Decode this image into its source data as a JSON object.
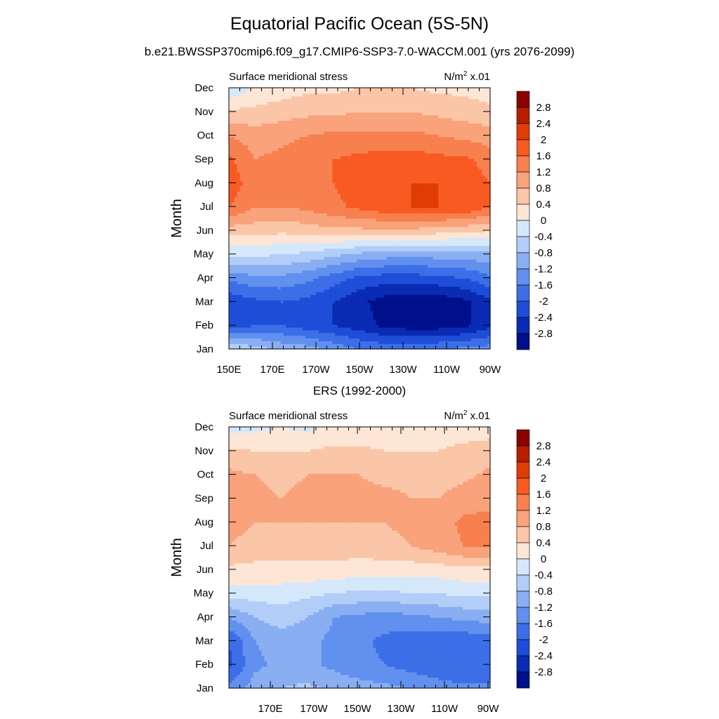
{
  "title": "Equatorial Pacific Ocean (5S-5N)",
  "subtitle": "b.e21.BWSSP370cmip6.f09_g17.CMIP6-SSP3-7.0-WACCM.001 (yrs 2076-2099)",
  "panel2_title": "ERS (1992-2000)",
  "colorbar": {
    "levels": [
      "2.8",
      "2.4",
      "2",
      "1.6",
      "1.2",
      "0.8",
      "0.4",
      "0",
      "-0.4",
      "-0.8",
      "-1.2",
      "-1.6",
      "-2",
      "-2.4",
      "-2.8"
    ],
    "colors": [
      "#8b0000",
      "#b81d00",
      "#e03c05",
      "#f85a22",
      "#f7804e",
      "#f9a27b",
      "#fbc5a8",
      "#fde6d6",
      "#d5e8fb",
      "#b2cdf8",
      "#8aaef2",
      "#6190ee",
      "#3d6ee8",
      "#1e4ed8",
      "#0a2bb4",
      "#00108a"
    ]
  },
  "chart_data": [
    {
      "type": "heatmap",
      "title": "Equatorial Pacific Ocean (5S-5N)",
      "subtitle": "b.e21.BWSSP370cmip6.f09_g17.CMIP6-SSP3-7.0-WACCM.001 (yrs 2076-2099)",
      "left_label": "Surface meridional stress",
      "right_label": "N/m",
      "right_label_sup": "2",
      "right_label_tail": " x.01",
      "ylabel": "Month",
      "x_ticks": [
        "150E",
        "170E",
        "170W",
        "150W",
        "130W",
        "110W",
        "90W"
      ],
      "y_ticks": [
        "Jan",
        "Feb",
        "Mar",
        "Apr",
        "May",
        "Jun",
        "Jul",
        "Aug",
        "Sep",
        "Oct",
        "Nov",
        "Dec"
      ],
      "rows": [
        [
          -0.4,
          -0.6,
          -0.9,
          -1.0,
          -1.3,
          -1.6,
          -1.7,
          -1.7,
          -1.6,
          -1.5,
          -1.4
        ],
        [
          -2.2,
          -2.0,
          -2.0,
          -2.2,
          -2.4,
          -2.6,
          -2.9,
          -3.0,
          -3.0,
          -2.9,
          -2.5
        ],
        [
          -2.3,
          -2.1,
          -2.0,
          -2.1,
          -2.4,
          -2.7,
          -3.0,
          -3.1,
          -3.1,
          -2.9,
          -2.5
        ],
        [
          -1.5,
          -1.3,
          -1.3,
          -1.5,
          -1.8,
          -2.1,
          -2.2,
          -2.2,
          -2.1,
          -2.0,
          -1.7
        ],
        [
          -0.3,
          -0.3,
          -0.4,
          -0.5,
          -0.7,
          -0.9,
          -1.0,
          -1.1,
          -1.0,
          -1.0,
          -0.9
        ],
        [
          0.6,
          0.6,
          0.5,
          0.6,
          0.7,
          0.7,
          0.7,
          0.7,
          0.6,
          0.5,
          0.4
        ],
        [
          1.6,
          1.2,
          1.2,
          1.3,
          1.5,
          1.7,
          1.9,
          2.0,
          2.0,
          2.0,
          1.6
        ],
        [
          1.9,
          1.3,
          1.4,
          1.4,
          1.6,
          1.8,
          1.9,
          2.0,
          2.0,
          1.9,
          1.6
        ],
        [
          1.7,
          1.2,
          1.3,
          1.4,
          1.6,
          1.7,
          1.8,
          1.8,
          1.7,
          1.7,
          1.4
        ],
        [
          1.2,
          1.0,
          1.1,
          1.2,
          1.3,
          1.3,
          1.3,
          1.3,
          1.2,
          1.1,
          1.0
        ],
        [
          0.5,
          0.5,
          0.6,
          0.7,
          0.7,
          0.8,
          0.8,
          0.8,
          0.7,
          0.6,
          0.5
        ],
        [
          -0.4,
          0.1,
          0.2,
          0.3,
          0.3,
          0.4,
          0.4,
          0.4,
          0.3,
          0.3,
          0.2
        ]
      ]
    },
    {
      "type": "heatmap",
      "title": "ERS (1992-2000)",
      "left_label": "Surface meridional stress",
      "right_label": "N/m",
      "right_label_sup": "2",
      "right_label_tail": " x.01",
      "ylabel": "Month",
      "x_ticks": [
        "170E",
        "170W",
        "150W",
        "130W",
        "110W",
        "90W"
      ],
      "y_ticks": [
        "Jan",
        "Feb",
        "Mar",
        "Apr",
        "May",
        "Jun",
        "Jul",
        "Aug",
        "Sep",
        "Oct",
        "Nov",
        "Dec"
      ],
      "rows": [
        [
          -1.5,
          -1.0,
          -0.8,
          -0.7,
          -0.9,
          -1.0,
          -1.1,
          -1.2,
          -1.4,
          -1.5,
          -1.5
        ],
        [
          -2.1,
          -1.3,
          -1.1,
          -1.1,
          -1.3,
          -1.5,
          -1.6,
          -1.8,
          -1.9,
          -2.0,
          -2.0
        ],
        [
          -2.0,
          -1.2,
          -1.0,
          -1.1,
          -1.3,
          -1.5,
          -1.7,
          -1.8,
          -1.9,
          -1.9,
          -1.8
        ],
        [
          -1.2,
          -0.8,
          -0.6,
          -0.8,
          -1.2,
          -1.3,
          -1.4,
          -1.3,
          -1.2,
          -1.1,
          -1.0
        ],
        [
          -0.2,
          -0.2,
          -0.2,
          -0.3,
          -0.4,
          -0.5,
          -0.5,
          -0.4,
          -0.4,
          -0.3,
          -0.3
        ],
        [
          0.3,
          0.3,
          0.3,
          0.3,
          0.3,
          0.2,
          0.2,
          0.2,
          0.2,
          0.3,
          0.3
        ],
        [
          0.8,
          0.6,
          0.6,
          0.6,
          0.6,
          0.6,
          0.7,
          0.8,
          1.0,
          1.2,
          1.3
        ],
        [
          1.0,
          0.8,
          0.8,
          0.8,
          0.8,
          0.8,
          0.8,
          0.9,
          1.0,
          1.3,
          1.3
        ],
        [
          1.2,
          0.9,
          0.8,
          0.9,
          0.9,
          0.9,
          0.9,
          0.8,
          0.8,
          1.0,
          1.1
        ],
        [
          0.9,
          0.8,
          0.7,
          0.8,
          0.8,
          0.8,
          0.7,
          0.7,
          0.6,
          0.7,
          0.9
        ],
        [
          0.5,
          0.4,
          0.4,
          0.4,
          0.5,
          0.5,
          0.4,
          0.4,
          0.4,
          0.5,
          0.6
        ],
        [
          -0.2,
          -0.1,
          0.0,
          -0.1,
          0.1,
          0.1,
          0.0,
          0.1,
          0.2,
          0.2,
          0.2
        ]
      ]
    }
  ]
}
